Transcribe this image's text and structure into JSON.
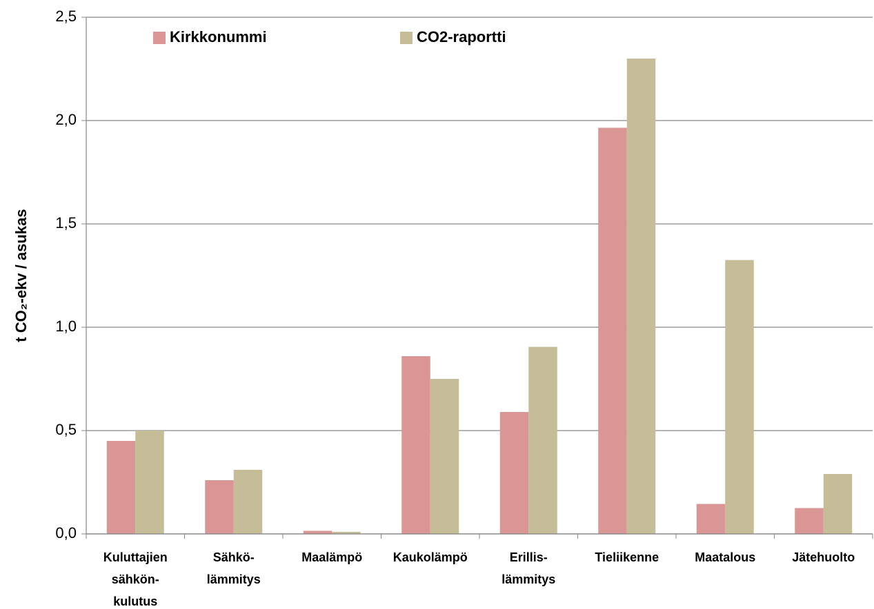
{
  "chart_data": {
    "type": "bar",
    "y_label": "t CO₂-ekv / asukas",
    "categories": [
      [
        "Kuluttajien",
        "sähkön-",
        "kulutus"
      ],
      [
        "Sähkö-",
        "lämmitys"
      ],
      [
        "Maalämpö"
      ],
      [
        "Kaukolämpö"
      ],
      [
        "Erillis-",
        "lämmitys"
      ],
      [
        "Tieliikenne"
      ],
      [
        "Maatalous"
      ],
      [
        "Jätehuolto"
      ]
    ],
    "series": [
      {
        "name": "Kirkkonummi",
        "color": "#d99694",
        "values": [
          0.45,
          0.26,
          0.015,
          0.86,
          0.59,
          1.965,
          0.145,
          0.125
        ]
      },
      {
        "name": "CO2-raportti",
        "color": "#c4bd97",
        "values": [
          0.5,
          0.31,
          0.01,
          0.75,
          0.905,
          2.3,
          1.325,
          0.29
        ]
      }
    ],
    "ylim": [
      0,
      2.5
    ],
    "yticks": [
      {
        "value": 0,
        "label": "0,0"
      },
      {
        "value": 0.5,
        "label": "0,5"
      },
      {
        "value": 1,
        "label": "1,0"
      },
      {
        "value": 1.5,
        "label": "1,5"
      },
      {
        "value": 2,
        "label": "2,0"
      },
      {
        "value": 2.5,
        "label": "2,5"
      }
    ],
    "grid": true,
    "legend": "top-left"
  }
}
